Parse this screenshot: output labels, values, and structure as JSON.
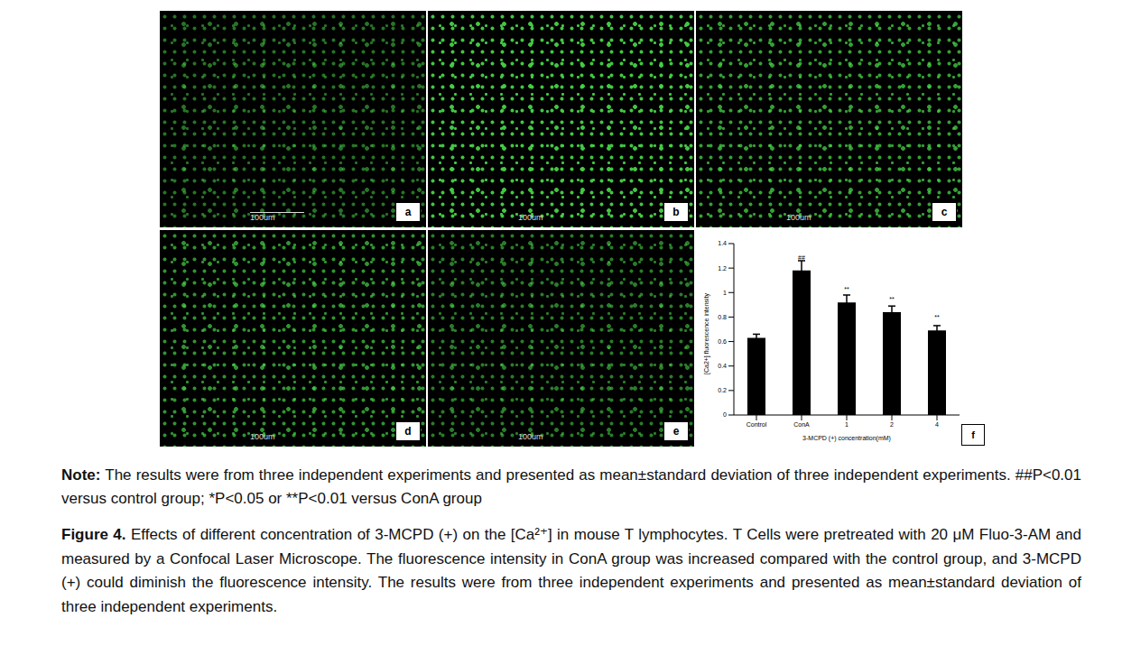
{
  "panels": [
    {
      "label": "a",
      "scale_bar": "100um"
    },
    {
      "label": "b",
      "scale_bar": "100um"
    },
    {
      "label": "c",
      "scale_bar": "100um"
    },
    {
      "label": "d",
      "scale_bar": "100um"
    },
    {
      "label": "e",
      "scale_bar": "100um"
    }
  ],
  "chart_data": {
    "type": "bar",
    "panel_label": "f",
    "categories": [
      "Control",
      "ConA",
      "1",
      "2",
      "4"
    ],
    "values": [
      0.63,
      1.18,
      0.92,
      0.84,
      0.69
    ],
    "error": [
      0.03,
      0.08,
      0.06,
      0.05,
      0.04
    ],
    "significance": [
      null,
      "##",
      "**",
      "**",
      "**"
    ],
    "color": "#000000",
    "ylim": [
      0,
      1.4
    ],
    "yticks": [
      0,
      0.2,
      0.4,
      0.6,
      0.8,
      1,
      1.2,
      1.4
    ],
    "ylabel": "[Ca2+] fluorescence intensity",
    "xlabel": "3-MCPD (+) concentration(mM)"
  },
  "note": {
    "label": "Note:",
    "text": "The results were from three independent experiments and presented as mean±standard deviation of three independent experiments. ##P<0.01 versus control group; *P<0.05 or **P<0.01 versus ConA group"
  },
  "caption": {
    "label": "Figure 4.",
    "text": "Effects of different concentration of 3-MCPD (+) on the [Ca²⁺] in mouse T lymphocytes. T Cells were pretreated with 20 μM Fluo-3-AM and measured by a Confocal Laser Microscope. The fluorescence intensity in ConA group was increased compared with the control group, and 3-MCPD (+) could diminish the fluorescence intensity. The results were from three independent experiments and presented as mean±standard deviation of three independent experiments."
  }
}
